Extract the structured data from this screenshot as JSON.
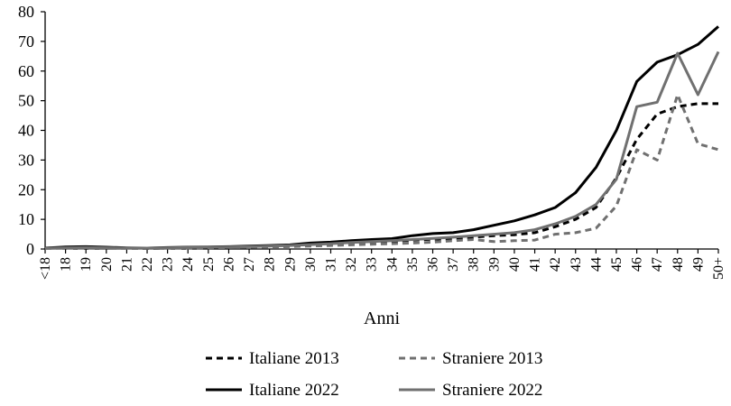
{
  "chart_data": {
    "type": "line",
    "title": "",
    "xlabel": "Anni",
    "ylabel": "",
    "ylim": [
      0,
      80
    ],
    "yticks": [
      0,
      10,
      20,
      30,
      40,
      50,
      60,
      70,
      80
    ],
    "grid": false,
    "legend_position": "bottom",
    "categories": [
      "<18",
      "18",
      "19",
      "20",
      "21",
      "22",
      "23",
      "24",
      "25",
      "26",
      "27",
      "28",
      "29",
      "30",
      "31",
      "32",
      "33",
      "34",
      "35",
      "36",
      "37",
      "38",
      "39",
      "40",
      "41",
      "42",
      "43",
      "44",
      "45",
      "46",
      "47",
      "48",
      "49",
      "50+"
    ],
    "series": [
      {
        "name": "Italiane 2013",
        "color": "#000000",
        "dash": "dashed",
        "values": [
          0.3,
          0.5,
          0.7,
          0.5,
          0.3,
          0.2,
          0.3,
          0.4,
          0.5,
          0.6,
          0.8,
          1.0,
          1.2,
          1.5,
          1.7,
          2.0,
          2.3,
          2.5,
          3.0,
          3.3,
          3.5,
          4.0,
          4.5,
          4.8,
          5.5,
          7.5,
          10.0,
          14.0,
          24.0,
          37.0,
          45.5,
          48.0,
          49.0,
          49.0
        ]
      },
      {
        "name": "Straniere 2013",
        "color": "#707070",
        "dash": "dashed",
        "values": [
          0.2,
          0.3,
          0.3,
          0.2,
          0.2,
          0.2,
          0.3,
          0.3,
          0.4,
          0.5,
          0.6,
          0.7,
          0.8,
          1.0,
          1.2,
          1.4,
          1.6,
          1.8,
          2.0,
          2.3,
          2.8,
          3.2,
          2.5,
          2.8,
          3.0,
          5.0,
          5.5,
          7.0,
          14.5,
          33.5,
          30.0,
          52.0,
          35.5,
          33.5
        ]
      },
      {
        "name": "Italiane 2022",
        "color": "#000000",
        "dash": "solid",
        "values": [
          0.3,
          0.7,
          0.8,
          0.6,
          0.4,
          0.3,
          0.5,
          0.6,
          0.7,
          0.8,
          1.0,
          1.2,
          1.4,
          2.0,
          2.3,
          2.8,
          3.2,
          3.5,
          4.5,
          5.2,
          5.5,
          6.5,
          8.0,
          9.5,
          11.5,
          14.0,
          19.0,
          27.5,
          40.0,
          56.5,
          63.0,
          65.5,
          69.0,
          75.0
        ]
      },
      {
        "name": "Straniere 2022",
        "color": "#707070",
        "dash": "solid",
        "values": [
          0.2,
          0.4,
          0.5,
          0.4,
          0.3,
          0.3,
          0.4,
          0.5,
          0.6,
          0.7,
          0.8,
          1.0,
          1.2,
          1.5,
          1.8,
          2.2,
          2.5,
          2.8,
          3.2,
          3.6,
          4.0,
          4.5,
          5.0,
          5.5,
          6.5,
          8.5,
          11.0,
          15.0,
          23.5,
          48.0,
          49.5,
          66.0,
          52.0,
          66.5
        ]
      }
    ]
  }
}
